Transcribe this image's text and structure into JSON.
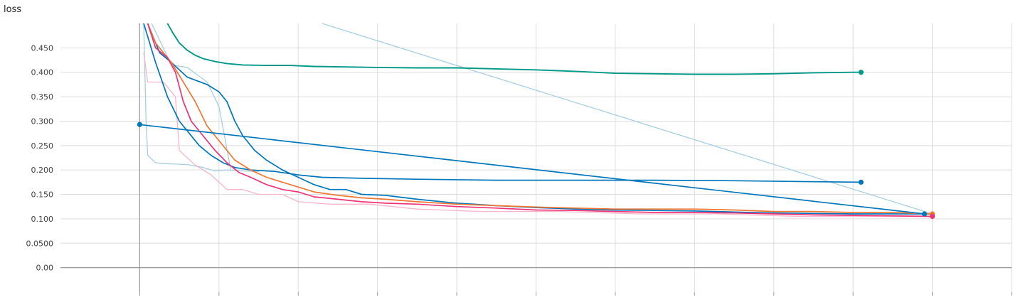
{
  "chart_data": {
    "type": "line",
    "title": "loss",
    "xlabel": "",
    "ylabel": "",
    "grid": true,
    "xlim": [
      -1,
      11
    ],
    "ylim": [
      -0.05,
      0.5
    ],
    "yticks": [
      {
        "v": 0.45,
        "label": "0.450"
      },
      {
        "v": 0.4,
        "label": "0.400"
      },
      {
        "v": 0.35,
        "label": "0.350"
      },
      {
        "v": 0.3,
        "label": "0.300"
      },
      {
        "v": 0.25,
        "label": "0.250"
      },
      {
        "v": 0.2,
        "label": "0.200"
      },
      {
        "v": 0.15,
        "label": "0.150"
      },
      {
        "v": 0.1,
        "label": "0.100"
      },
      {
        "v": 0.05,
        "label": "0.0500"
      },
      {
        "v": 0.0,
        "label": "0.00"
      }
    ],
    "xgrid": [
      0,
      1,
      2,
      3,
      4,
      5,
      6,
      7,
      8,
      9,
      10,
      11
    ],
    "colors": {
      "teal": "#009988",
      "blue": "#0077bb",
      "orange": "#ee7733",
      "magenta": "#ee3377",
      "lightblue": "#a6cee3",
      "pink": "#f4b6c8"
    },
    "series": [
      {
        "color": "#a6cee3",
        "width": 1.3,
        "end": false,
        "points": [
          [
            0.05,
            0.5
          ],
          [
            0.08,
            0.3
          ],
          [
            0.1,
            0.23
          ],
          [
            0.2,
            0.215
          ],
          [
            0.3,
            0.213
          ],
          [
            0.45,
            0.212
          ],
          [
            0.6,
            0.211
          ],
          [
            0.8,
            0.205
          ],
          [
            0.95,
            0.198
          ],
          [
            1.1,
            0.2
          ],
          [
            1.3,
            0.198
          ],
          [
            1.5,
            0.197
          ]
        ]
      },
      {
        "color": "#a6cee3",
        "width": 1.3,
        "end": false,
        "points": [
          [
            0.15,
            0.5
          ],
          [
            0.4,
            0.415
          ],
          [
            0.6,
            0.41
          ],
          [
            0.85,
            0.38
          ],
          [
            1.0,
            0.33
          ],
          [
            1.15,
            0.2
          ]
        ]
      },
      {
        "color": "#a6cee3",
        "width": 1.3,
        "end": false,
        "points": [
          [
            2.3,
            0.5
          ],
          [
            10.0,
            0.11
          ]
        ]
      },
      {
        "color": "#f4b6c8",
        "width": 1.3,
        "end": false,
        "points": [
          [
            0.05,
            0.44
          ],
          [
            0.1,
            0.38
          ],
          [
            0.3,
            0.38
          ],
          [
            0.45,
            0.35
          ],
          [
            0.5,
            0.24
          ],
          [
            0.7,
            0.21
          ],
          [
            0.9,
            0.19
          ],
          [
            1.1,
            0.16
          ],
          [
            1.3,
            0.16
          ],
          [
            1.5,
            0.15
          ],
          [
            1.8,
            0.15
          ],
          [
            2.0,
            0.135
          ],
          [
            2.4,
            0.13
          ],
          [
            2.9,
            0.13
          ],
          [
            3.5,
            0.12
          ],
          [
            4.3,
            0.115
          ],
          [
            5.3,
            0.115
          ],
          [
            6.3,
            0.11
          ],
          [
            7.3,
            0.11
          ],
          [
            8.3,
            0.105
          ],
          [
            9.3,
            0.105
          ],
          [
            10.0,
            0.105
          ]
        ]
      },
      {
        "color": "#0077bb",
        "width": 1.7,
        "end": false,
        "points": [
          [
            0.05,
            0.5
          ],
          [
            0.2,
            0.42
          ],
          [
            0.35,
            0.35
          ],
          [
            0.5,
            0.3
          ],
          [
            0.6,
            0.28
          ],
          [
            0.75,
            0.25
          ],
          [
            0.9,
            0.23
          ],
          [
            1.05,
            0.215
          ],
          [
            1.2,
            0.205
          ],
          [
            1.4,
            0.2
          ],
          [
            1.7,
            0.197
          ],
          [
            2.0,
            0.19
          ],
          [
            2.3,
            0.185
          ],
          [
            2.8,
            0.183
          ],
          [
            3.5,
            0.181
          ],
          [
            4.5,
            0.179
          ],
          [
            5.5,
            0.179
          ],
          [
            6.5,
            0.179
          ],
          [
            7.5,
            0.178
          ],
          [
            8.5,
            0.176
          ],
          [
            9.1,
            0.175
          ]
        ]
      },
      {
        "color": "#0077bb",
        "width": 1.7,
        "end": false,
        "points": [
          [
            0.1,
            0.5
          ],
          [
            0.25,
            0.44
          ],
          [
            0.4,
            0.42
          ],
          [
            0.6,
            0.39
          ],
          [
            0.85,
            0.375
          ],
          [
            1.0,
            0.36
          ],
          [
            1.1,
            0.34
          ],
          [
            1.2,
            0.3
          ],
          [
            1.3,
            0.27
          ],
          [
            1.45,
            0.24
          ],
          [
            1.6,
            0.22
          ],
          [
            1.8,
            0.2
          ],
          [
            2.0,
            0.185
          ],
          [
            2.2,
            0.17
          ],
          [
            2.4,
            0.16
          ],
          [
            2.6,
            0.16
          ],
          [
            2.8,
            0.15
          ],
          [
            3.1,
            0.148
          ],
          [
            3.5,
            0.14
          ],
          [
            4.0,
            0.132
          ],
          [
            4.5,
            0.127
          ],
          [
            5.0,
            0.123
          ],
          [
            5.5,
            0.12
          ],
          [
            6.0,
            0.118
          ],
          [
            6.5,
            0.117
          ],
          [
            7.0,
            0.116
          ],
          [
            7.5,
            0.114
          ],
          [
            8.0,
            0.112
          ],
          [
            8.5,
            0.111
          ],
          [
            9.0,
            0.11
          ],
          [
            9.5,
            0.11
          ],
          [
            10.0,
            0.11
          ]
        ]
      },
      {
        "color": "#ee7733",
        "width": 1.7,
        "end": true,
        "points": [
          [
            0.1,
            0.5
          ],
          [
            0.2,
            0.46
          ],
          [
            0.4,
            0.42
          ],
          [
            0.55,
            0.38
          ],
          [
            0.7,
            0.34
          ],
          [
            0.85,
            0.29
          ],
          [
            1.0,
            0.26
          ],
          [
            1.2,
            0.22
          ],
          [
            1.4,
            0.2
          ],
          [
            1.6,
            0.185
          ],
          [
            1.8,
            0.175
          ],
          [
            2.0,
            0.165
          ],
          [
            2.2,
            0.155
          ],
          [
            2.5,
            0.148
          ],
          [
            2.8,
            0.143
          ],
          [
            3.1,
            0.14
          ],
          [
            3.5,
            0.135
          ],
          [
            4.0,
            0.13
          ],
          [
            4.5,
            0.127
          ],
          [
            5.0,
            0.124
          ],
          [
            5.5,
            0.122
          ],
          [
            6.0,
            0.12
          ],
          [
            6.5,
            0.12
          ],
          [
            7.0,
            0.12
          ],
          [
            7.5,
            0.118
          ],
          [
            8.0,
            0.115
          ],
          [
            8.5,
            0.115
          ],
          [
            9.0,
            0.113
          ],
          [
            9.5,
            0.113
          ],
          [
            10.0,
            0.11
          ]
        ]
      },
      {
        "color": "#ee3377",
        "width": 1.7,
        "end": true,
        "points": [
          [
            0.1,
            0.5
          ],
          [
            0.2,
            0.45
          ],
          [
            0.35,
            0.43
          ],
          [
            0.45,
            0.4
          ],
          [
            0.55,
            0.34
          ],
          [
            0.65,
            0.3
          ],
          [
            0.8,
            0.27
          ],
          [
            0.95,
            0.24
          ],
          [
            1.1,
            0.215
          ],
          [
            1.25,
            0.195
          ],
          [
            1.4,
            0.185
          ],
          [
            1.6,
            0.17
          ],
          [
            1.8,
            0.16
          ],
          [
            2.0,
            0.155
          ],
          [
            2.2,
            0.145
          ],
          [
            2.5,
            0.14
          ],
          [
            2.8,
            0.135
          ],
          [
            3.1,
            0.132
          ],
          [
            3.5,
            0.13
          ],
          [
            4.0,
            0.125
          ],
          [
            4.5,
            0.122
          ],
          [
            5.0,
            0.118
          ],
          [
            5.5,
            0.117
          ],
          [
            6.0,
            0.115
          ],
          [
            6.5,
            0.113
          ],
          [
            7.0,
            0.113
          ],
          [
            7.5,
            0.112
          ],
          [
            8.0,
            0.11
          ],
          [
            8.5,
            0.108
          ],
          [
            9.0,
            0.107
          ],
          [
            9.5,
            0.106
          ],
          [
            10.0,
            0.105
          ]
        ]
      },
      {
        "color": "#0077bb",
        "width": 1.7,
        "end": true,
        "start": true,
        "points": [
          [
            0.0,
            0.293
          ],
          [
            9.9,
            0.11
          ]
        ]
      },
      {
        "color": "#0077bb",
        "width": 1.7,
        "end": true,
        "start": false,
        "points": [
          [
            9.1,
            0.175
          ],
          [
            9.1,
            0.175
          ]
        ]
      },
      {
        "color": "#009988",
        "width": 1.9,
        "end": true,
        "points": [
          [
            0.35,
            0.5
          ],
          [
            0.42,
            0.48
          ],
          [
            0.5,
            0.46
          ],
          [
            0.6,
            0.445
          ],
          [
            0.7,
            0.435
          ],
          [
            0.8,
            0.428
          ],
          [
            0.95,
            0.422
          ],
          [
            1.1,
            0.418
          ],
          [
            1.3,
            0.415
          ],
          [
            1.6,
            0.414
          ],
          [
            1.9,
            0.414
          ],
          [
            2.2,
            0.412
          ],
          [
            2.6,
            0.411
          ],
          [
            3.0,
            0.41
          ],
          [
            3.5,
            0.409
          ],
          [
            4.0,
            0.409
          ],
          [
            4.5,
            0.407
          ],
          [
            5.0,
            0.405
          ],
          [
            5.5,
            0.402
          ],
          [
            6.0,
            0.398
          ],
          [
            6.5,
            0.397
          ],
          [
            7.0,
            0.396
          ],
          [
            7.5,
            0.396
          ],
          [
            8.0,
            0.397
          ],
          [
            8.5,
            0.399
          ],
          [
            9.0,
            0.4
          ],
          [
            9.1,
            0.4
          ]
        ]
      }
    ]
  }
}
